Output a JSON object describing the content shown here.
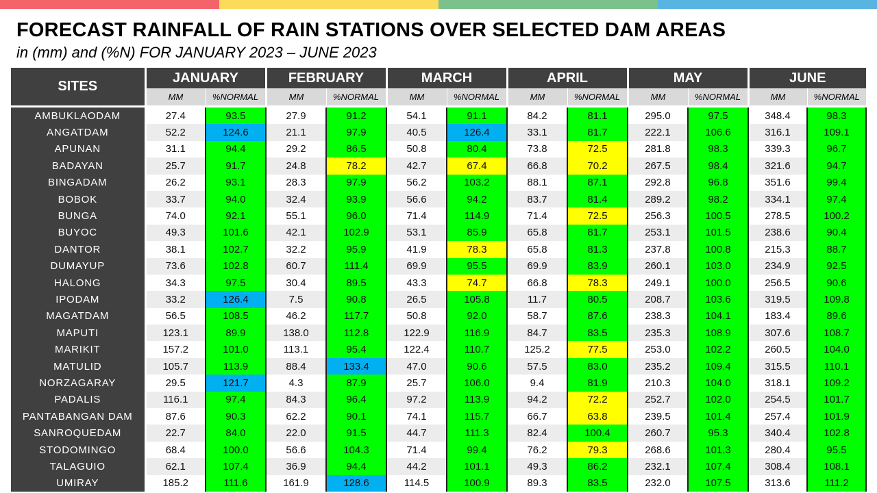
{
  "title": "FORECAST RAINFALL OF RAIN STATIONS OVER SELECTED DAM AREAS",
  "subtitle": "in (mm) and (%N) FOR JANUARY 2023 – JUNE 2023",
  "top_bar_colors": [
    "#f4636a",
    "#fadb5c",
    "#7cc08c",
    "#58b4e1"
  ],
  "legend_colors": {
    "blue": "#00b0f0",
    "green": "#00ff00",
    "yellow": "#ffff00"
  },
  "header": {
    "sites": "SITES",
    "sub_mm": "MM",
    "sub_pct": "%NORMAL",
    "months": [
      "JANUARY",
      "FEBRUARY",
      "MARCH",
      "APRIL",
      "MAY",
      "JUNE"
    ]
  },
  "rows": [
    {
      "site": "AMBUKLAODAM",
      "values": [
        [
          "27.4",
          "93.5",
          "green"
        ],
        [
          "27.9",
          "91.2",
          "green"
        ],
        [
          "54.1",
          "91.1",
          "green"
        ],
        [
          "84.2",
          "81.1",
          "green"
        ],
        [
          "295.0",
          "97.5",
          "green"
        ],
        [
          "348.4",
          "98.3",
          "green"
        ]
      ]
    },
    {
      "site": "ANGATDAM",
      "values": [
        [
          "52.2",
          "124.6",
          "blue"
        ],
        [
          "21.1",
          "97.9",
          "green"
        ],
        [
          "40.5",
          "126.4",
          "blue"
        ],
        [
          "33.1",
          "81.7",
          "green"
        ],
        [
          "222.1",
          "106.6",
          "green"
        ],
        [
          "316.1",
          "109.1",
          "green"
        ]
      ]
    },
    {
      "site": "APUNAN",
      "values": [
        [
          "31.1",
          "94.4",
          "green"
        ],
        [
          "29.2",
          "86.5",
          "green"
        ],
        [
          "50.8",
          "80.4",
          "green"
        ],
        [
          "73.8",
          "72.5",
          "yellow"
        ],
        [
          "281.8",
          "98.3",
          "green"
        ],
        [
          "339.3",
          "96.7",
          "green"
        ]
      ]
    },
    {
      "site": "BADAYAN",
      "values": [
        [
          "25.7",
          "91.7",
          "green"
        ],
        [
          "24.8",
          "78.2",
          "yellow"
        ],
        [
          "42.7",
          "67.4",
          "yellow"
        ],
        [
          "66.8",
          "70.2",
          "yellow"
        ],
        [
          "267.5",
          "98.4",
          "green"
        ],
        [
          "321.6",
          "94.7",
          "green"
        ]
      ]
    },
    {
      "site": "BINGADAM",
      "values": [
        [
          "26.2",
          "93.1",
          "green"
        ],
        [
          "28.3",
          "97.9",
          "green"
        ],
        [
          "56.2",
          "103.2",
          "green"
        ],
        [
          "88.1",
          "87.1",
          "green"
        ],
        [
          "292.8",
          "96.8",
          "green"
        ],
        [
          "351.6",
          "99.4",
          "green"
        ]
      ]
    },
    {
      "site": "BOBOK",
      "values": [
        [
          "33.7",
          "94.0",
          "green"
        ],
        [
          "32.4",
          "93.9",
          "green"
        ],
        [
          "56.6",
          "94.2",
          "green"
        ],
        [
          "83.7",
          "81.4",
          "green"
        ],
        [
          "289.2",
          "98.2",
          "green"
        ],
        [
          "334.1",
          "97.4",
          "green"
        ]
      ]
    },
    {
      "site": "BUNGA",
      "values": [
        [
          "74.0",
          "92.1",
          "green"
        ],
        [
          "55.1",
          "96.0",
          "green"
        ],
        [
          "71.4",
          "114.9",
          "green"
        ],
        [
          "71.4",
          "72.5",
          "yellow"
        ],
        [
          "256.3",
          "100.5",
          "green"
        ],
        [
          "278.5",
          "100.2",
          "green"
        ]
      ]
    },
    {
      "site": "BUYOC",
      "values": [
        [
          "49.3",
          "101.6",
          "green"
        ],
        [
          "42.1",
          "102.9",
          "green"
        ],
        [
          "53.1",
          "85.9",
          "green"
        ],
        [
          "65.8",
          "81.7",
          "green"
        ],
        [
          "253.1",
          "101.5",
          "green"
        ],
        [
          "238.6",
          "90.4",
          "green"
        ]
      ]
    },
    {
      "site": "DANTOR",
      "values": [
        [
          "38.1",
          "102.7",
          "green"
        ],
        [
          "32.2",
          "95.9",
          "green"
        ],
        [
          "41.9",
          "78.3",
          "yellow"
        ],
        [
          "65.8",
          "81.3",
          "green"
        ],
        [
          "237.8",
          "100.8",
          "green"
        ],
        [
          "215.3",
          "88.7",
          "green"
        ]
      ]
    },
    {
      "site": "DUMAYUP",
      "values": [
        [
          "73.6",
          "102.8",
          "green"
        ],
        [
          "60.7",
          "111.4",
          "green"
        ],
        [
          "69.9",
          "95.5",
          "green"
        ],
        [
          "69.9",
          "83.9",
          "green"
        ],
        [
          "260.1",
          "103.0",
          "green"
        ],
        [
          "234.9",
          "92.5",
          "green"
        ]
      ]
    },
    {
      "site": "HALONG",
      "values": [
        [
          "34.3",
          "97.5",
          "green"
        ],
        [
          "30.4",
          "89.5",
          "green"
        ],
        [
          "43.3",
          "74.7",
          "yellow"
        ],
        [
          "66.8",
          "78.3",
          "yellow"
        ],
        [
          "249.1",
          "100.0",
          "green"
        ],
        [
          "256.5",
          "90.6",
          "green"
        ]
      ]
    },
    {
      "site": "IPODAM",
      "values": [
        [
          "33.2",
          "126.4",
          "blue"
        ],
        [
          "7.5",
          "90.8",
          "green"
        ],
        [
          "26.5",
          "105.8",
          "green"
        ],
        [
          "11.7",
          "80.5",
          "green"
        ],
        [
          "208.7",
          "103.6",
          "green"
        ],
        [
          "319.5",
          "109.8",
          "green"
        ]
      ]
    },
    {
      "site": "MAGATDAM",
      "values": [
        [
          "56.5",
          "108.5",
          "green"
        ],
        [
          "46.2",
          "117.7",
          "green"
        ],
        [
          "50.8",
          "92.0",
          "green"
        ],
        [
          "58.7",
          "87.6",
          "green"
        ],
        [
          "238.3",
          "104.1",
          "green"
        ],
        [
          "183.4",
          "89.6",
          "green"
        ]
      ]
    },
    {
      "site": "MAPUTI",
      "values": [
        [
          "123.1",
          "89.9",
          "green"
        ],
        [
          "138.0",
          "112.8",
          "green"
        ],
        [
          "122.9",
          "116.9",
          "green"
        ],
        [
          "84.7",
          "83.5",
          "green"
        ],
        [
          "235.3",
          "108.9",
          "green"
        ],
        [
          "307.6",
          "108.7",
          "green"
        ]
      ]
    },
    {
      "site": "MARIKIT",
      "values": [
        [
          "157.2",
          "101.0",
          "green"
        ],
        [
          "113.1",
          "95.4",
          "green"
        ],
        [
          "122.4",
          "110.7",
          "green"
        ],
        [
          "125.2",
          "77.5",
          "yellow"
        ],
        [
          "253.0",
          "102.2",
          "green"
        ],
        [
          "260.5",
          "104.0",
          "green"
        ]
      ]
    },
    {
      "site": "MATULID",
      "values": [
        [
          "105.7",
          "113.9",
          "green"
        ],
        [
          "88.4",
          "133.4",
          "blue"
        ],
        [
          "47.0",
          "90.6",
          "green"
        ],
        [
          "57.5",
          "83.0",
          "green"
        ],
        [
          "235.2",
          "109.4",
          "green"
        ],
        [
          "315.5",
          "110.1",
          "green"
        ]
      ]
    },
    {
      "site": "NORZAGARAY",
      "values": [
        [
          "29.5",
          "121.7",
          "blue"
        ],
        [
          "4.3",
          "87.9",
          "green"
        ],
        [
          "25.7",
          "106.0",
          "green"
        ],
        [
          "9.4",
          "81.9",
          "green"
        ],
        [
          "210.3",
          "104.0",
          "green"
        ],
        [
          "318.1",
          "109.2",
          "green"
        ]
      ]
    },
    {
      "site": "PADALIS",
      "values": [
        [
          "116.1",
          "97.4",
          "green"
        ],
        [
          "84.3",
          "96.4",
          "green"
        ],
        [
          "97.2",
          "113.9",
          "green"
        ],
        [
          "94.2",
          "72.2",
          "yellow"
        ],
        [
          "252.7",
          "102.0",
          "green"
        ],
        [
          "254.5",
          "101.7",
          "green"
        ]
      ]
    },
    {
      "site": "PANTABANGAN DAM",
      "values": [
        [
          "87.6",
          "90.3",
          "green"
        ],
        [
          "62.2",
          "90.1",
          "green"
        ],
        [
          "74.1",
          "115.7",
          "green"
        ],
        [
          "66.7",
          "63.8",
          "yellow"
        ],
        [
          "239.5",
          "101.4",
          "green"
        ],
        [
          "257.4",
          "101.9",
          "green"
        ]
      ]
    },
    {
      "site": "SANROQUEDAM",
      "values": [
        [
          "22.7",
          "84.0",
          "green"
        ],
        [
          "22.0",
          "91.5",
          "green"
        ],
        [
          "44.7",
          "111.3",
          "green"
        ],
        [
          "82.4",
          "100.4",
          "green"
        ],
        [
          "260.7",
          "95.3",
          "green"
        ],
        [
          "340.4",
          "102.8",
          "green"
        ]
      ]
    },
    {
      "site": "STODOMINGO",
      "values": [
        [
          "68.4",
          "100.0",
          "green"
        ],
        [
          "56.6",
          "104.3",
          "green"
        ],
        [
          "71.4",
          "99.4",
          "green"
        ],
        [
          "76.2",
          "79.3",
          "yellow"
        ],
        [
          "268.6",
          "101.3",
          "green"
        ],
        [
          "280.4",
          "95.5",
          "green"
        ]
      ]
    },
    {
      "site": "TALAGUIO",
      "values": [
        [
          "62.1",
          "107.4",
          "green"
        ],
        [
          "36.9",
          "94.4",
          "green"
        ],
        [
          "44.2",
          "101.1",
          "green"
        ],
        [
          "49.3",
          "86.2",
          "green"
        ],
        [
          "232.1",
          "107.4",
          "green"
        ],
        [
          "308.4",
          "108.1",
          "green"
        ]
      ]
    },
    {
      "site": "UMIRAY",
      "values": [
        [
          "185.2",
          "111.6",
          "green"
        ],
        [
          "161.9",
          "128.6",
          "blue"
        ],
        [
          "114.5",
          "100.9",
          "green"
        ],
        [
          "89.3",
          "83.5",
          "green"
        ],
        [
          "232.0",
          "107.5",
          "green"
        ],
        [
          "313.6",
          "111.2",
          "green"
        ]
      ]
    }
  ]
}
